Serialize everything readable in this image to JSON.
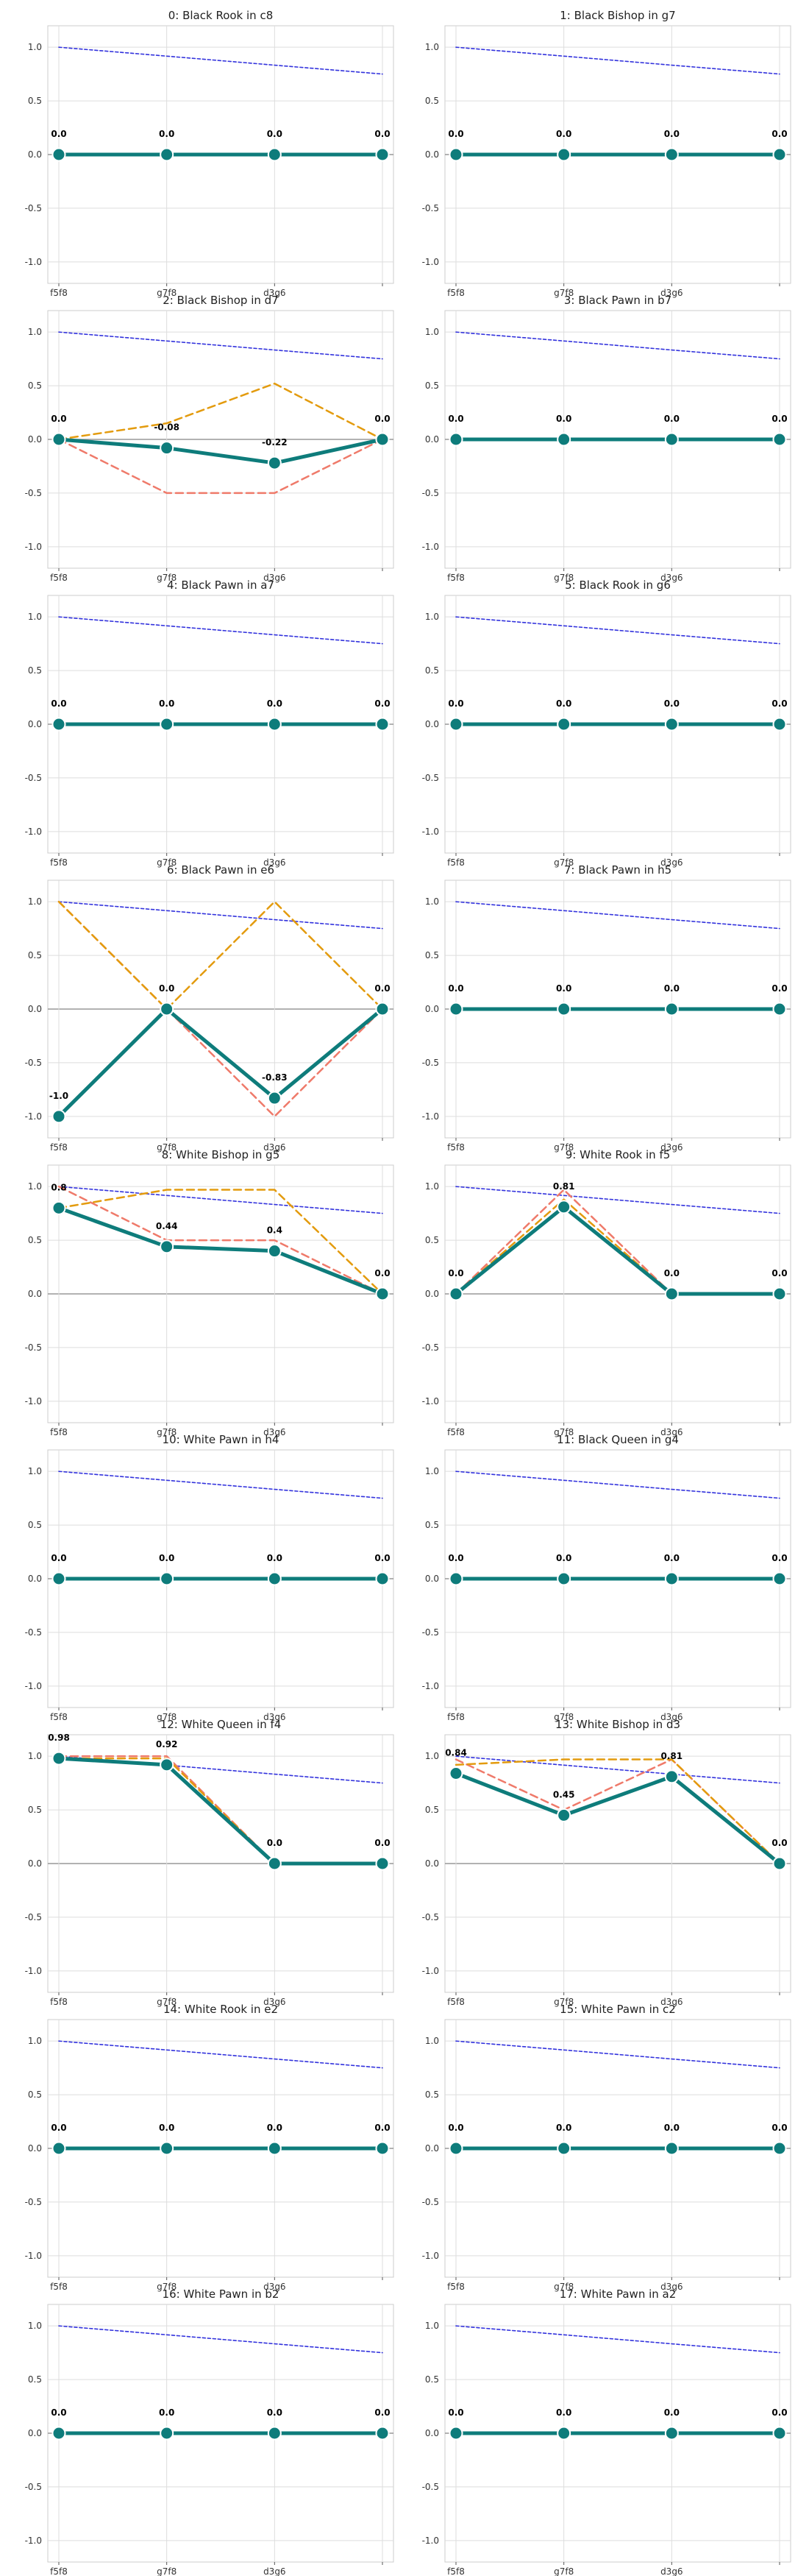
{
  "style": {
    "main_color": "#0e7c7b",
    "upper_color": "#e39b0e",
    "lower_color": "#ef7a6a",
    "reference_color": "#3333dd",
    "zero_line_color": "#999999",
    "grid_color": "#dddddd"
  },
  "chart_data": [
    {
      "type": "line",
      "title": "0: Black Rook in c8",
      "categories": [
        "f5f8",
        "g7f8",
        "d3g6",
        ""
      ],
      "ylim": [
        -1.2,
        1.2
      ],
      "yticks": [
        "1.0",
        "0.5",
        "0.0",
        "-0.5",
        "-1.0"
      ],
      "grid": true,
      "labels": [
        "0.0",
        "0.0",
        "0.0",
        "0.0"
      ],
      "series": [
        {
          "values": [
            0,
            0,
            0,
            0
          ]
        },
        {
          "values": [
            0,
            0,
            0,
            0
          ]
        },
        {
          "values": [
            0,
            0,
            0,
            0
          ]
        },
        {
          "values": [
            1.0,
            0.917,
            0.833,
            0.75
          ]
        }
      ]
    },
    {
      "type": "line",
      "title": "1: Black Bishop in g7",
      "categories": [
        "f5f8",
        "g7f8",
        "d3g6",
        ""
      ],
      "ylim": [
        -1.2,
        1.2
      ],
      "yticks": [
        "1.0",
        "0.5",
        "0.0",
        "-0.5",
        "-1.0"
      ],
      "grid": true,
      "labels": [
        "0.0",
        "0.0",
        "0.0",
        "0.0"
      ],
      "series": [
        {
          "values": [
            0,
            0,
            0,
            0
          ]
        },
        {
          "values": [
            0,
            0,
            0,
            0
          ]
        },
        {
          "values": [
            0,
            0,
            0,
            0
          ]
        },
        {
          "values": [
            1.0,
            0.917,
            0.833,
            0.75
          ]
        }
      ]
    },
    {
      "type": "line",
      "title": "2: Black Bishop in d7",
      "categories": [
        "f5f8",
        "g7f8",
        "d3g6",
        ""
      ],
      "ylim": [
        -1.2,
        1.2
      ],
      "yticks": [
        "1.0",
        "0.5",
        "0.0",
        "-0.5",
        "-1.0"
      ],
      "grid": true,
      "labels": [
        "0.0",
        "-0.08",
        "-0.22",
        "0.0"
      ],
      "series": [
        {
          "values": [
            0,
            -0.08,
            -0.22,
            0
          ]
        },
        {
          "values": [
            0,
            0.15,
            0.52,
            0
          ]
        },
        {
          "values": [
            0,
            -0.5,
            -0.5,
            0
          ]
        },
        {
          "values": [
            1.0,
            0.917,
            0.833,
            0.75
          ]
        }
      ]
    },
    {
      "type": "line",
      "title": "3: Black Pawn in b7",
      "categories": [
        "f5f8",
        "g7f8",
        "d3g6",
        ""
      ],
      "ylim": [
        -1.2,
        1.2
      ],
      "yticks": [
        "1.0",
        "0.5",
        "0.0",
        "-0.5",
        "-1.0"
      ],
      "grid": true,
      "labels": [
        "0.0",
        "0.0",
        "0.0",
        "0.0"
      ],
      "series": [
        {
          "values": [
            0,
            0,
            0,
            0
          ]
        },
        {
          "values": [
            0,
            0,
            0,
            0
          ]
        },
        {
          "values": [
            0,
            0,
            0,
            0
          ]
        },
        {
          "values": [
            1.0,
            0.917,
            0.833,
            0.75
          ]
        }
      ]
    },
    {
      "type": "line",
      "title": "4: Black Pawn in a7",
      "categories": [
        "f5f8",
        "g7f8",
        "d3g6",
        ""
      ],
      "ylim": [
        -1.2,
        1.2
      ],
      "yticks": [
        "1.0",
        "0.5",
        "0.0",
        "-0.5",
        "-1.0"
      ],
      "grid": true,
      "labels": [
        "0.0",
        "0.0",
        "0.0",
        "0.0"
      ],
      "series": [
        {
          "values": [
            0,
            0,
            0,
            0
          ]
        },
        {
          "values": [
            0,
            0,
            0,
            0
          ]
        },
        {
          "values": [
            0,
            0,
            0,
            0
          ]
        },
        {
          "values": [
            1.0,
            0.917,
            0.833,
            0.75
          ]
        }
      ]
    },
    {
      "type": "line",
      "title": "5: Black Rook in g6",
      "categories": [
        "f5f8",
        "g7f8",
        "d3g6",
        ""
      ],
      "ylim": [
        -1.2,
        1.2
      ],
      "yticks": [
        "1.0",
        "0.5",
        "0.0",
        "-0.5",
        "-1.0"
      ],
      "grid": true,
      "labels": [
        "0.0",
        "0.0",
        "0.0",
        "0.0"
      ],
      "series": [
        {
          "values": [
            0,
            0,
            0,
            0
          ]
        },
        {
          "values": [
            0,
            0,
            0,
            0
          ]
        },
        {
          "values": [
            0,
            0,
            0,
            0
          ]
        },
        {
          "values": [
            1.0,
            0.917,
            0.833,
            0.75
          ]
        }
      ]
    },
    {
      "type": "line",
      "title": "6: Black Pawn in e6",
      "categories": [
        "f5f8",
        "g7f8",
        "d3g6",
        ""
      ],
      "ylim": [
        -1.2,
        1.2
      ],
      "yticks": [
        "1.0",
        "0.5",
        "0.0",
        "-0.5",
        "-1.0"
      ],
      "grid": true,
      "labels": [
        "-1.0",
        "0.0",
        "-0.83",
        "0.0"
      ],
      "series": [
        {
          "values": [
            -1.0,
            0,
            -0.83,
            0
          ]
        },
        {
          "values": [
            1.0,
            0,
            1.0,
            0
          ]
        },
        {
          "values": [
            1.0,
            0,
            -1.0,
            0
          ]
        },
        {
          "values": [
            1.0,
            0.917,
            0.833,
            0.75
          ]
        }
      ]
    },
    {
      "type": "line",
      "title": "7: Black Pawn in h5",
      "categories": [
        "f5f8",
        "g7f8",
        "d3g6",
        ""
      ],
      "ylim": [
        -1.2,
        1.2
      ],
      "yticks": [
        "1.0",
        "0.5",
        "0.0",
        "-0.5",
        "-1.0"
      ],
      "grid": true,
      "labels": [
        "0.0",
        "0.0",
        "0.0",
        "0.0"
      ],
      "series": [
        {
          "values": [
            0,
            0,
            0,
            0
          ]
        },
        {
          "values": [
            0,
            0,
            0,
            0
          ]
        },
        {
          "values": [
            0,
            0,
            0,
            0
          ]
        },
        {
          "values": [
            1.0,
            0.917,
            0.833,
            0.75
          ]
        }
      ]
    },
    {
      "type": "line",
      "title": "8: White Bishop in g5",
      "categories": [
        "f5f8",
        "g7f8",
        "d3g6",
        ""
      ],
      "ylim": [
        -1.2,
        1.2
      ],
      "yticks": [
        "1.0",
        "0.5",
        "0.0",
        "-0.5",
        "-1.0"
      ],
      "grid": true,
      "labels": [
        "0.8",
        "0.44",
        "0.4",
        "0.0"
      ],
      "series": [
        {
          "values": [
            0.8,
            0.44,
            0.4,
            0
          ]
        },
        {
          "values": [
            0.8,
            0.97,
            0.97,
            0
          ]
        },
        {
          "values": [
            1.0,
            0.5,
            0.5,
            0
          ]
        },
        {
          "values": [
            1.0,
            0.917,
            0.833,
            0.75
          ]
        }
      ]
    },
    {
      "type": "line",
      "title": "9: White Rook in f5",
      "categories": [
        "f5f8",
        "g7f8",
        "d3g6",
        ""
      ],
      "ylim": [
        -1.2,
        1.2
      ],
      "yticks": [
        "1.0",
        "0.5",
        "0.0",
        "-0.5",
        "-1.0"
      ],
      "grid": true,
      "labels": [
        "0.0",
        "0.81",
        "0.0",
        "0.0"
      ],
      "series": [
        {
          "values": [
            0,
            0.81,
            0,
            0
          ]
        },
        {
          "values": [
            0,
            0.88,
            0,
            0
          ]
        },
        {
          "values": [
            0,
            0.97,
            0,
            0
          ]
        },
        {
          "values": [
            1.0,
            0.917,
            0.833,
            0.75
          ]
        }
      ]
    },
    {
      "type": "line",
      "title": "10: White Pawn in h4",
      "categories": [
        "f5f8",
        "g7f8",
        "d3g6",
        ""
      ],
      "ylim": [
        -1.2,
        1.2
      ],
      "yticks": [
        "1.0",
        "0.5",
        "0.0",
        "-0.5",
        "-1.0"
      ],
      "grid": true,
      "labels": [
        "0.0",
        "0.0",
        "0.0",
        "0.0"
      ],
      "series": [
        {
          "values": [
            0,
            0,
            0,
            0
          ]
        },
        {
          "values": [
            0,
            0,
            0,
            0
          ]
        },
        {
          "values": [
            0,
            0,
            0,
            0
          ]
        },
        {
          "values": [
            1.0,
            0.917,
            0.833,
            0.75
          ]
        }
      ]
    },
    {
      "type": "line",
      "title": "11: Black Queen in g4",
      "categories": [
        "f5f8",
        "g7f8",
        "d3g6",
        ""
      ],
      "ylim": [
        -1.2,
        1.2
      ],
      "yticks": [
        "1.0",
        "0.5",
        "0.0",
        "-0.5",
        "-1.0"
      ],
      "grid": true,
      "labels": [
        "0.0",
        "0.0",
        "0.0",
        "0.0"
      ],
      "series": [
        {
          "values": [
            0,
            0,
            0,
            0
          ]
        },
        {
          "values": [
            0,
            0,
            0,
            0
          ]
        },
        {
          "values": [
            0,
            0,
            0,
            0
          ]
        },
        {
          "values": [
            1.0,
            0.917,
            0.833,
            0.75
          ]
        }
      ]
    },
    {
      "type": "line",
      "title": "12: White Queen in f4",
      "categories": [
        "f5f8",
        "g7f8",
        "d3g6",
        ""
      ],
      "ylim": [
        -1.2,
        1.2
      ],
      "yticks": [
        "1.0",
        "0.5",
        "0.0",
        "-0.5",
        "-1.0"
      ],
      "grid": true,
      "labels": [
        "0.98",
        "0.92",
        "0.0",
        "0.0"
      ],
      "series": [
        {
          "values": [
            0.98,
            0.92,
            0,
            0
          ]
        },
        {
          "values": [
            0.98,
            0.98,
            0,
            0
          ]
        },
        {
          "values": [
            1.0,
            1.0,
            0,
            0
          ]
        },
        {
          "values": [
            1.0,
            0.917,
            0.833,
            0.75
          ]
        }
      ]
    },
    {
      "type": "line",
      "title": "13: White Bishop in d3",
      "categories": [
        "f5f8",
        "g7f8",
        "d3g6",
        ""
      ],
      "ylim": [
        -1.2,
        1.2
      ],
      "yticks": [
        "1.0",
        "0.5",
        "0.0",
        "-0.5",
        "-1.0"
      ],
      "grid": true,
      "labels": [
        "0.84",
        "0.45",
        "0.81",
        "0.0"
      ],
      "series": [
        {
          "values": [
            0.84,
            0.45,
            0.81,
            0
          ]
        },
        {
          "values": [
            0.92,
            0.97,
            0.97,
            0
          ]
        },
        {
          "values": [
            0.97,
            0.5,
            0.97,
            0
          ]
        },
        {
          "values": [
            1.0,
            0.917,
            0.833,
            0.75
          ]
        }
      ]
    },
    {
      "type": "line",
      "title": "14: White Rook in e2",
      "categories": [
        "f5f8",
        "g7f8",
        "d3g6",
        ""
      ],
      "ylim": [
        -1.2,
        1.2
      ],
      "yticks": [
        "1.0",
        "0.5",
        "0.0",
        "-0.5",
        "-1.0"
      ],
      "grid": true,
      "labels": [
        "0.0",
        "0.0",
        "0.0",
        "0.0"
      ],
      "series": [
        {
          "values": [
            0,
            0,
            0,
            0
          ]
        },
        {
          "values": [
            0,
            0,
            0,
            0
          ]
        },
        {
          "values": [
            0,
            0,
            0,
            0
          ]
        },
        {
          "values": [
            1.0,
            0.917,
            0.833,
            0.75
          ]
        }
      ]
    },
    {
      "type": "line",
      "title": "15: White Pawn in c2",
      "categories": [
        "f5f8",
        "g7f8",
        "d3g6",
        ""
      ],
      "ylim": [
        -1.2,
        1.2
      ],
      "yticks": [
        "1.0",
        "0.5",
        "0.0",
        "-0.5",
        "-1.0"
      ],
      "grid": true,
      "labels": [
        "0.0",
        "0.0",
        "0.0",
        "0.0"
      ],
      "series": [
        {
          "values": [
            0,
            0,
            0,
            0
          ]
        },
        {
          "values": [
            0,
            0,
            0,
            0
          ]
        },
        {
          "values": [
            0,
            0,
            0,
            0
          ]
        },
        {
          "values": [
            1.0,
            0.917,
            0.833,
            0.75
          ]
        }
      ]
    },
    {
      "type": "line",
      "title": "16: White Pawn in b2",
      "categories": [
        "f5f8",
        "g7f8",
        "d3g6",
        ""
      ],
      "ylim": [
        -1.2,
        1.2
      ],
      "yticks": [
        "1.0",
        "0.5",
        "0.0",
        "-0.5",
        "-1.0"
      ],
      "grid": true,
      "labels": [
        "0.0",
        "0.0",
        "0.0",
        "0.0"
      ],
      "series": [
        {
          "values": [
            0,
            0,
            0,
            0
          ]
        },
        {
          "values": [
            0,
            0,
            0,
            0
          ]
        },
        {
          "values": [
            0,
            0,
            0,
            0
          ]
        },
        {
          "values": [
            1.0,
            0.917,
            0.833,
            0.75
          ]
        }
      ]
    },
    {
      "type": "line",
      "title": "17: White Pawn in a2",
      "categories": [
        "f5f8",
        "g7f8",
        "d3g6",
        ""
      ],
      "ylim": [
        -1.2,
        1.2
      ],
      "yticks": [
        "1.0",
        "0.5",
        "0.0",
        "-0.5",
        "-1.0"
      ],
      "grid": true,
      "labels": [
        "0.0",
        "0.0",
        "0.0",
        "0.0"
      ],
      "series": [
        {
          "values": [
            0,
            0,
            0,
            0
          ]
        },
        {
          "values": [
            0,
            0,
            0,
            0
          ]
        },
        {
          "values": [
            0,
            0,
            0,
            0
          ]
        },
        {
          "values": [
            1.0,
            0.917,
            0.833,
            0.75
          ]
        }
      ]
    }
  ]
}
